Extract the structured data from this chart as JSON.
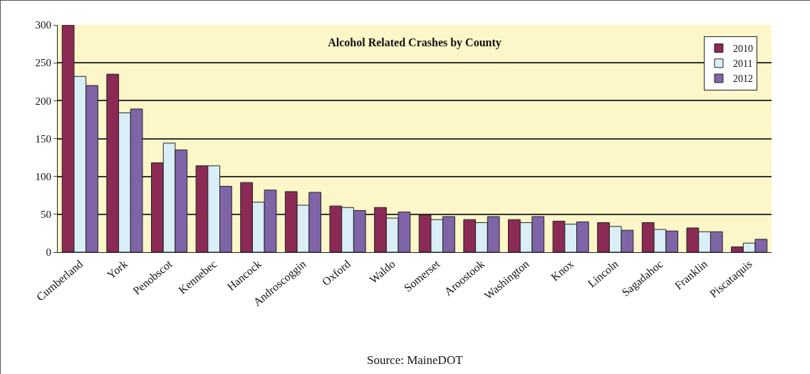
{
  "chart_data": {
    "type": "bar",
    "title": "Alcohol Related Crashes by County",
    "categories": [
      "Cumberland",
      "York",
      "Penobscot",
      "Kennebec",
      "Hancock",
      "Androscoggin",
      "Oxford",
      "Waldo",
      "Somerset",
      "Aroostook",
      "Washington",
      "Knox",
      "Lincoln",
      "Sagadahoc",
      "Franklin",
      "Piscataquis"
    ],
    "series": [
      {
        "name": "2010",
        "color": "#8b2a55",
        "values": [
          300,
          235,
          118,
          114,
          92,
          80,
          61,
          59,
          49,
          43,
          43,
          41,
          39,
          39,
          32,
          7
        ]
      },
      {
        "name": "2011",
        "color": "#d9eef7",
        "values": [
          232,
          184,
          144,
          114,
          66,
          62,
          59,
          45,
          43,
          39,
          39,
          37,
          34,
          30,
          27,
          12
        ]
      },
      {
        "name": "2012",
        "color": "#8064a8",
        "values": [
          220,
          189,
          135,
          87,
          82,
          79,
          55,
          53,
          47,
          47,
          47,
          40,
          29,
          28,
          27,
          17
        ]
      }
    ],
    "ylim": [
      0,
      300
    ],
    "yticks": [
      0,
      50,
      100,
      150,
      200,
      250,
      300
    ],
    "grid": "y",
    "legend": "top right",
    "annotations": [
      "Source: MaineDOT"
    ]
  }
}
